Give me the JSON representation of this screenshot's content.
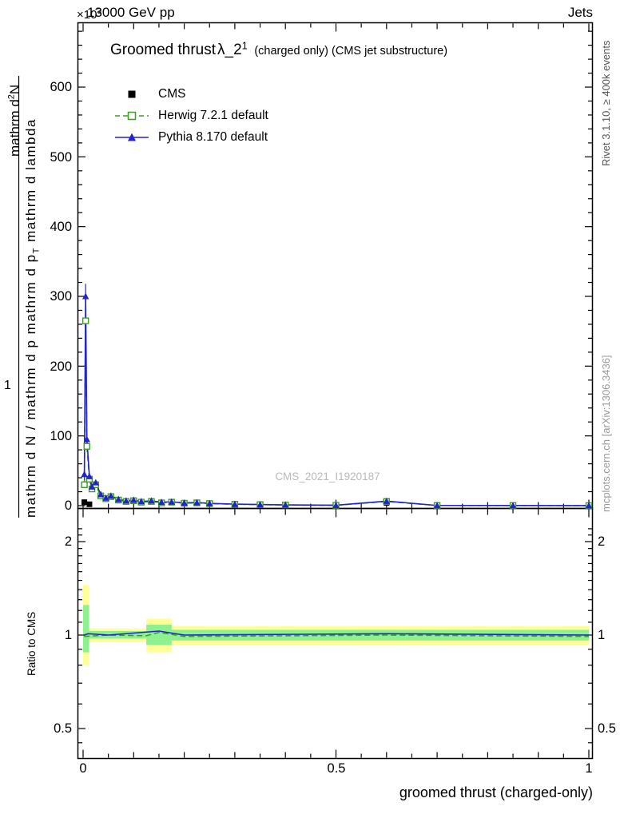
{
  "header": {
    "exponent": "×10",
    "exponent_sup": "3",
    "beam_label": "13000 GeV pp",
    "right_label": "Jets"
  },
  "title": {
    "main": "Groomed thrust",
    "lambda": "λ_2",
    "sup": "1",
    "qualifier": "(charged only) (CMS jet substructure)"
  },
  "legend": {
    "items": [
      {
        "label": "CMS"
      },
      {
        "label": "Herwig 7.2.1 default"
      },
      {
        "label": "Pythia 8.170 default"
      }
    ]
  },
  "watermark": "CMS_2021_I1920187",
  "sidebar_right": {
    "rivet": "Rivet 3.1.10, ≥ 400k events",
    "mcplots": "mcplots.cern.ch [arXiv:1306.3436]"
  },
  "ylabel": {
    "one": "1",
    "num_pre": "mathrm d",
    "num_sup": "2",
    "num_post": "N",
    "den_pre": "mathrm d N / mathrm d p mathrm d p",
    "den_sub": "T",
    "den_post": " mathrm d lambda"
  },
  "ratio_label": "Ratio to CMS",
  "xlabel": "groomed thrust (charged-only)",
  "axes": {
    "x_ticks": [
      "0",
      "0.5",
      "1"
    ],
    "y_ticks": [
      "0",
      "100",
      "200",
      "300",
      "400",
      "500",
      "600"
    ],
    "ratio_ticks_left": [
      "2",
      "1",
      "0.5"
    ],
    "ratio_ticks_right": [
      "2",
      "1",
      "0.5"
    ]
  },
  "chart_data": {
    "type": "line",
    "title": "Groomed thrust λ_2^1 (charged only) (CMS jet substructure)",
    "xlabel": "groomed thrust (charged-only)",
    "ylabel": "1/N mathrm d²N / mathrm d p_T mathrm d lambda",
    "y_unit": "×10³",
    "xlim": [
      0,
      1
    ],
    "ylim": [
      0,
      690
    ],
    "x_major_ticks": [
      0,
      0.5,
      1
    ],
    "y_major_ticks": [
      0,
      100,
      200,
      300,
      400,
      500,
      600
    ],
    "legend_position": "top-left",
    "grid": false,
    "series": [
      {
        "name": "CMS",
        "color": "#000000",
        "line": "none",
        "marker": "filled-square",
        "points": [
          [
            0.0025,
            5
          ],
          [
            0.0125,
            2
          ],
          [
            0.6,
            4
          ]
        ]
      },
      {
        "name": "Herwig 7.2.1 default",
        "color": "#3b9e23",
        "line": "dashed",
        "marker": "open-square",
        "points": [
          [
            0.0025,
            30
          ],
          [
            0.005,
            265,
            15
          ],
          [
            0.0075,
            85
          ],
          [
            0.0125,
            38
          ],
          [
            0.0175,
            24
          ],
          [
            0.025,
            30
          ],
          [
            0.035,
            14
          ],
          [
            0.045,
            10
          ],
          [
            0.055,
            13
          ],
          [
            0.07,
            8
          ],
          [
            0.085,
            6
          ],
          [
            0.1,
            7
          ],
          [
            0.115,
            5
          ],
          [
            0.135,
            6
          ],
          [
            0.155,
            4
          ],
          [
            0.175,
            5
          ],
          [
            0.2,
            3.5
          ],
          [
            0.225,
            4
          ],
          [
            0.25,
            3
          ],
          [
            0.3,
            2
          ],
          [
            0.35,
            1.5
          ],
          [
            0.4,
            1
          ],
          [
            0.5,
            0.5
          ],
          [
            0.6,
            6
          ],
          [
            0.7,
            0.3
          ],
          [
            0.85,
            0.2
          ],
          [
            1,
            0.1
          ]
        ]
      },
      {
        "name": "Pythia 8.170 default",
        "color": "#2323cc",
        "line": "solid",
        "marker": "filled-triangle",
        "points": [
          [
            0.0025,
            45,
            8
          ],
          [
            0.005,
            300,
            18
          ],
          [
            0.0075,
            95
          ],
          [
            0.0125,
            42
          ],
          [
            0.0175,
            27
          ],
          [
            0.025,
            33
          ],
          [
            0.035,
            16
          ],
          [
            0.045,
            11
          ],
          [
            0.055,
            14
          ],
          [
            0.07,
            9
          ],
          [
            0.085,
            7
          ],
          [
            0.1,
            8
          ],
          [
            0.115,
            6
          ],
          [
            0.135,
            7
          ],
          [
            0.155,
            5
          ],
          [
            0.175,
            5.5
          ],
          [
            0.2,
            4
          ],
          [
            0.225,
            4.5
          ],
          [
            0.25,
            3.2
          ],
          [
            0.3,
            2.2
          ],
          [
            0.35,
            1.6
          ],
          [
            0.4,
            1.1
          ],
          [
            0.5,
            0.6
          ],
          [
            0.6,
            6.5
          ],
          [
            0.7,
            0.3
          ],
          [
            0.85,
            0.2
          ],
          [
            1,
            0.1
          ]
        ]
      }
    ],
    "ratio": {
      "label": "Ratio to CMS",
      "scale": "log",
      "ylim": [
        0.4,
        2.4
      ],
      "ticks": [
        0.5,
        1,
        2
      ]
    },
    "ratio_bands": {
      "outer_color": "#ffff99",
      "inner_color": "#8ef08e",
      "outer": [
        {
          "x0": 0,
          "x1": 0.012,
          "lo": 0.8,
          "hi": 1.45
        },
        {
          "x0": 0.012,
          "x1": 0.125,
          "lo": 0.95,
          "hi": 1.05
        },
        {
          "x0": 0.125,
          "x1": 0.175,
          "lo": 0.88,
          "hi": 1.13
        },
        {
          "x0": 0.175,
          "x1": 1,
          "lo": 0.93,
          "hi": 1.07
        }
      ],
      "inner": [
        {
          "x0": 0,
          "x1": 0.012,
          "lo": 0.88,
          "hi": 1.25
        },
        {
          "x0": 0.012,
          "x1": 0.125,
          "lo": 0.975,
          "hi": 1.03
        },
        {
          "x0": 0.125,
          "x1": 0.175,
          "lo": 0.93,
          "hi": 1.08
        },
        {
          "x0": 0.175,
          "x1": 1,
          "lo": 0.96,
          "hi": 1.04
        }
      ]
    },
    "ratio_lines": {
      "herwig": {
        "color": "#3b9e23",
        "style": "dashed",
        "points": [
          [
            0.002,
            0.99
          ],
          [
            0.05,
            1.0
          ],
          [
            0.125,
            0.995
          ],
          [
            0.15,
            1.02
          ],
          [
            0.2,
            0.99
          ],
          [
            0.6,
            1.0
          ],
          [
            1,
            0.99
          ]
        ]
      },
      "pythia": {
        "color": "#2323cc",
        "style": "solid",
        "points": [
          [
            0.002,
            1.0
          ],
          [
            0.01,
            1.01
          ],
          [
            0.05,
            1.0
          ],
          [
            0.15,
            1.03
          ],
          [
            0.2,
            1.0
          ],
          [
            0.6,
            1.01
          ],
          [
            1,
            1.0
          ]
        ]
      }
    }
  }
}
